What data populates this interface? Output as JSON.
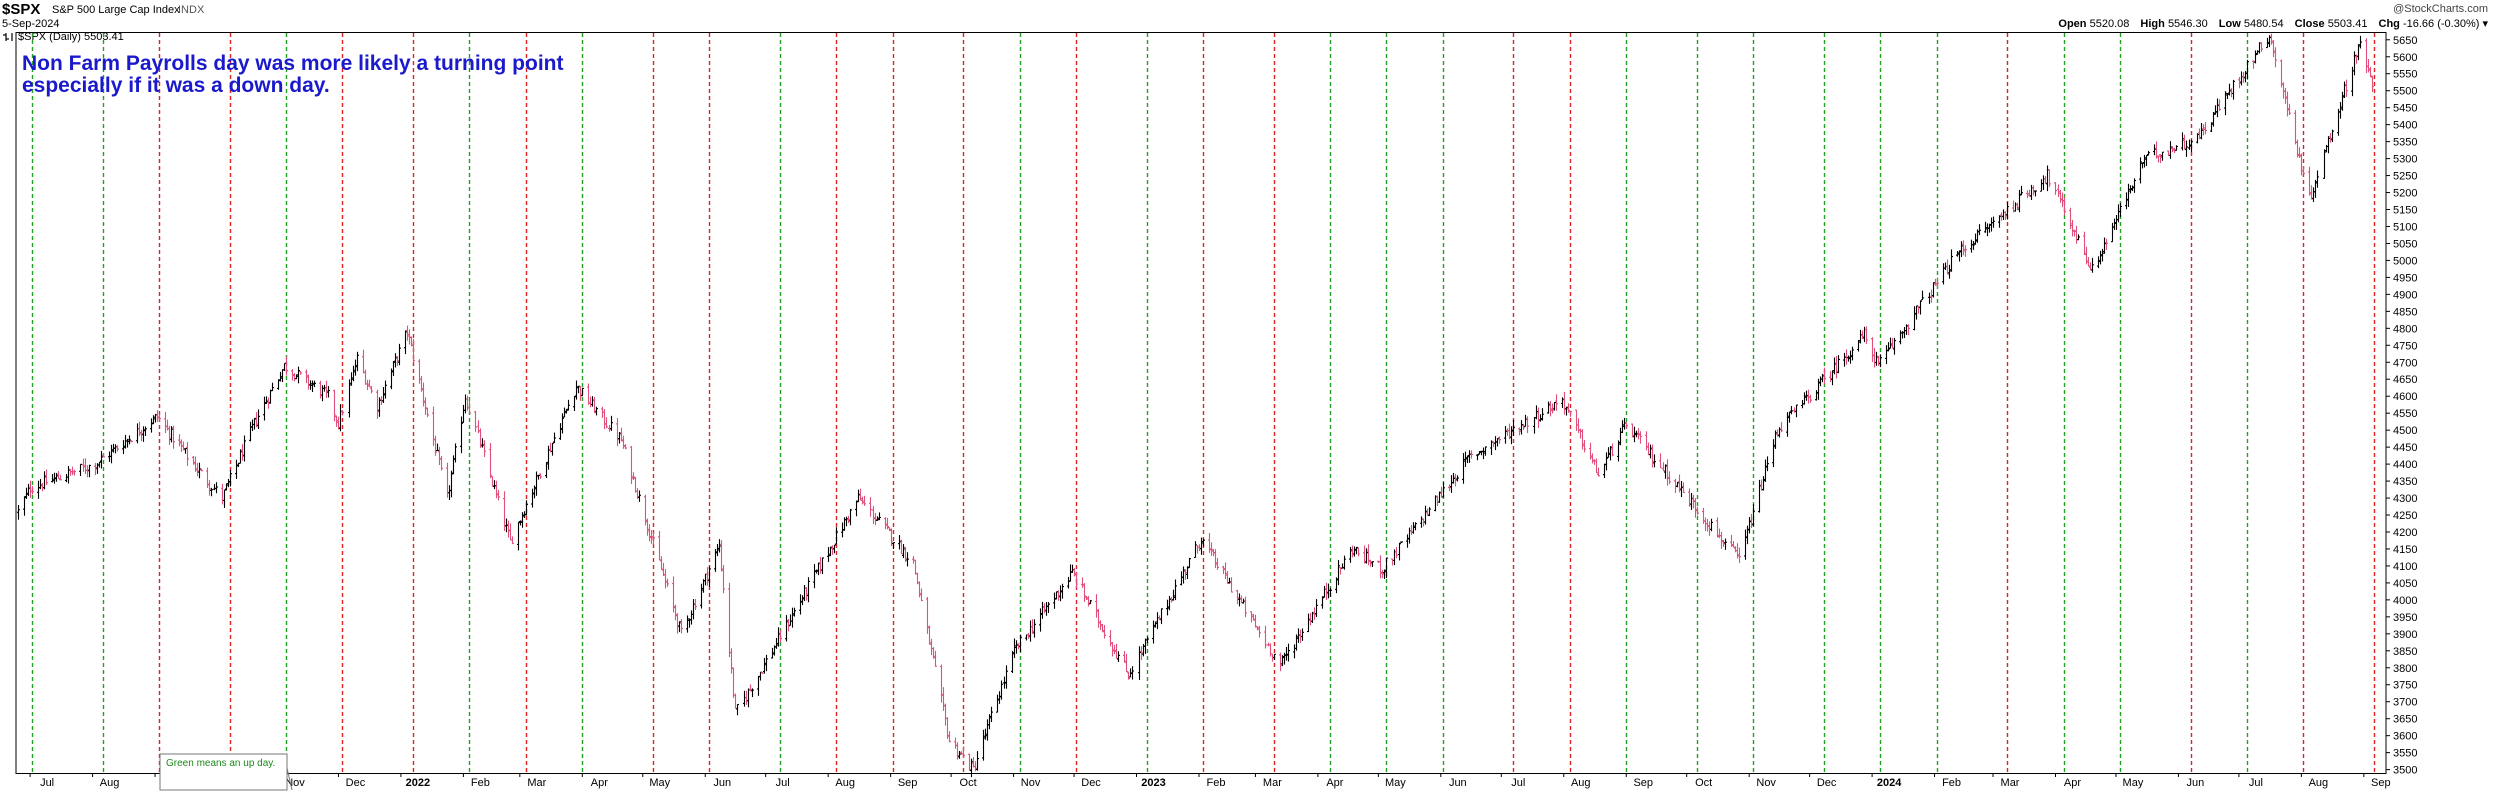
{
  "header": {
    "ticker": "$SPX",
    "name": "S&P 500 Large Cap Index",
    "exchange": "INDX",
    "date": "5-Sep-2024",
    "legend": "$SPX (Daily) 5503.41",
    "watermark": "@StockCharts.com",
    "quote": {
      "open_label": "Open",
      "open": "5520.08",
      "high_label": "High",
      "high": "5546.30",
      "low_label": "Low",
      "low": "5480.54",
      "close_label": "Close",
      "close": "5503.41",
      "chg_label": "Chg",
      "chg": "-16.66 (-0.30%)"
    }
  },
  "annotation": {
    "line1": "Non Farm Payrolls day was more likely a turning point",
    "line2": "especially if it was a down day."
  },
  "note_box": {
    "text": "Green means an up day."
  },
  "colors": {
    "up_line": "#22a022",
    "down_line": "#dd2222",
    "up_bar": "#000000",
    "down_bar": "#e0507a",
    "annotation": "#1a1acc"
  },
  "chart_data": {
    "type": "bar",
    "title": "$SPX S&P 500 Large Cap Index",
    "ylim": [
      3490,
      5670
    ],
    "y_ticks": [
      3500,
      3550,
      3600,
      3650,
      3700,
      3750,
      3800,
      3850,
      3900,
      3950,
      4000,
      4050,
      4100,
      4150,
      4200,
      4250,
      4300,
      4350,
      4400,
      4450,
      4500,
      4550,
      4600,
      4650,
      4700,
      4750,
      4800,
      4850,
      4900,
      4950,
      5000,
      5050,
      5100,
      5150,
      5200,
      5250,
      5300,
      5350,
      5400,
      5450,
      5500,
      5550,
      5600,
      5650
    ],
    "x_ticks": [
      "Jul",
      "Aug",
      "Sep",
      "Oct",
      "Nov",
      "Dec",
      "2022",
      "Feb",
      "Mar",
      "Apr",
      "May",
      "Jun",
      "Jul",
      "Aug",
      "Sep",
      "Oct",
      "Nov",
      "Dec",
      "2023",
      "Feb",
      "Mar",
      "Apr",
      "May",
      "Jun",
      "Jul",
      "Aug",
      "Sep",
      "Oct",
      "Nov",
      "Dec",
      "2024",
      "Feb",
      "Mar",
      "Apr",
      "May",
      "Jun",
      "Jul",
      "Aug",
      "Sep"
    ],
    "bold_ticks": [
      "2022",
      "2023",
      "2024"
    ],
    "price_path": [
      [
        "2021-06-25",
        4260
      ],
      [
        "2021-07-01",
        4330
      ],
      [
        "2021-08-02",
        4400
      ],
      [
        "2021-09-02",
        4540
      ],
      [
        "2021-09-20",
        4400
      ],
      [
        "2021-10-04",
        4300
      ],
      [
        "2021-10-20",
        4520
      ],
      [
        "2021-11-04",
        4690
      ],
      [
        "2021-11-26",
        4600
      ],
      [
        "2021-12-01",
        4520
      ],
      [
        "2021-12-10",
        4710
      ],
      [
        "2021-12-20",
        4570
      ],
      [
        "2022-01-04",
        4790
      ],
      [
        "2022-01-24",
        4300
      ],
      [
        "2022-02-02",
        4600
      ],
      [
        "2022-02-24",
        4170
      ],
      [
        "2022-03-29",
        4630
      ],
      [
        "2022-04-20",
        4470
      ],
      [
        "2022-05-20",
        3900
      ],
      [
        "2022-06-08",
        4160
      ],
      [
        "2022-06-16",
        3666
      ],
      [
        "2022-07-01",
        3820
      ],
      [
        "2022-08-16",
        4300
      ],
      [
        "2022-09-12",
        4110
      ],
      [
        "2022-09-30",
        3585
      ],
      [
        "2022-10-12",
        3500
      ],
      [
        "2022-11-01",
        3850
      ],
      [
        "2022-11-30",
        4080
      ],
      [
        "2022-12-28",
        3780
      ],
      [
        "2023-02-02",
        4180
      ],
      [
        "2023-03-13",
        3808
      ],
      [
        "2023-04-18",
        4150
      ],
      [
        "2023-05-03",
        4090
      ],
      [
        "2023-06-15",
        4420
      ],
      [
        "2023-07-31",
        4590
      ],
      [
        "2023-08-18",
        4370
      ],
      [
        "2023-09-01",
        4515
      ],
      [
        "2023-10-27",
        4117
      ],
      [
        "2023-11-15",
        4500
      ],
      [
        "2023-12-28",
        4780
      ],
      [
        "2024-01-04",
        4690
      ],
      [
        "2024-02-12",
        5020
      ],
      [
        "2024-03-28",
        5250
      ],
      [
        "2024-04-19",
        4970
      ],
      [
        "2024-05-15",
        5300
      ],
      [
        "2024-06-10",
        5360
      ],
      [
        "2024-07-16",
        5667
      ],
      [
        "2024-08-05",
        5180
      ],
      [
        "2024-08-30",
        5650
      ],
      [
        "2024-09-05",
        5503
      ]
    ],
    "nfp_days": [
      [
        "2021-07-02",
        "up"
      ],
      [
        "2021-08-06",
        "up"
      ],
      [
        "2021-09-03",
        "down"
      ],
      [
        "2021-10-08",
        "down"
      ],
      [
        "2021-11-05",
        "up"
      ],
      [
        "2021-12-03",
        "down"
      ],
      [
        "2022-01-07",
        "down"
      ],
      [
        "2022-02-04",
        "up"
      ],
      [
        "2022-03-04",
        "down"
      ],
      [
        "2022-04-01",
        "up"
      ],
      [
        "2022-05-06",
        "down"
      ],
      [
        "2022-06-03",
        "down"
      ],
      [
        "2022-07-08",
        "up"
      ],
      [
        "2022-08-05",
        "down"
      ],
      [
        "2022-09-02",
        "down"
      ],
      [
        "2022-10-07",
        "down"
      ],
      [
        "2022-11-04",
        "up"
      ],
      [
        "2022-12-02",
        "down"
      ],
      [
        "2023-01-06",
        "up"
      ],
      [
        "2023-02-03",
        "down"
      ],
      [
        "2023-03-10",
        "down"
      ],
      [
        "2023-04-07",
        "up"
      ],
      [
        "2023-05-05",
        "up"
      ],
      [
        "2023-06-02",
        "up"
      ],
      [
        "2023-07-07",
        "down"
      ],
      [
        "2023-08-04",
        "down"
      ],
      [
        "2023-09-01",
        "up"
      ],
      [
        "2023-10-06",
        "up"
      ],
      [
        "2023-11-03",
        "up"
      ],
      [
        "2023-12-08",
        "up"
      ],
      [
        "2024-01-05",
        "up"
      ],
      [
        "2024-02-02",
        "up"
      ],
      [
        "2024-03-08",
        "down"
      ],
      [
        "2024-04-05",
        "up"
      ],
      [
        "2024-05-03",
        "up"
      ],
      [
        "2024-06-07",
        "down"
      ],
      [
        "2024-07-05",
        "up"
      ],
      [
        "2024-08-02",
        "down"
      ],
      [
        "2024-09-06",
        "down"
      ]
    ]
  }
}
